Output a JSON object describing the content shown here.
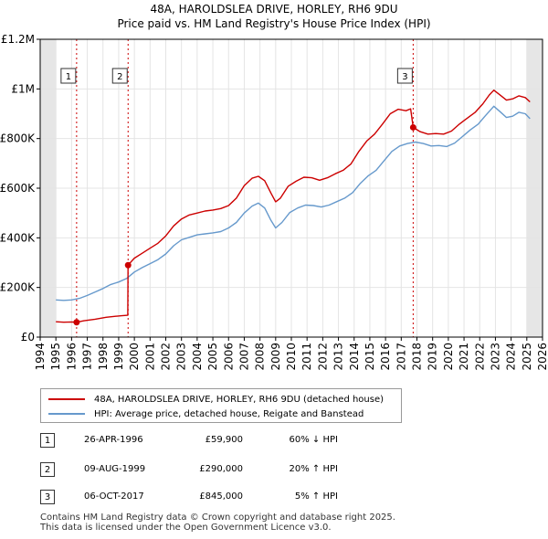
{
  "chart_data": {
    "type": "line",
    "title": "48A, HAROLDSLEA DRIVE, HORLEY, RH6 9DU",
    "subtitle": "Price paid vs. HM Land Registry's House Price Index (HPI)",
    "x_ticks": [
      "1994",
      "1995",
      "1996",
      "1997",
      "1998",
      "1999",
      "2000",
      "2001",
      "2002",
      "2003",
      "2004",
      "2005",
      "2006",
      "2007",
      "2008",
      "2009",
      "2010",
      "2011",
      "2012",
      "2013",
      "2014",
      "2015",
      "2016",
      "2017",
      "2018",
      "2019",
      "2020",
      "2021",
      "2022",
      "2023",
      "2024",
      "2025",
      "2026"
    ],
    "y_ticks": [
      {
        "value": 0,
        "label": "£0"
      },
      {
        "value": 200000,
        "label": "£200K"
      },
      {
        "value": 400000,
        "label": "£400K"
      },
      {
        "value": 600000,
        "label": "£600K"
      },
      {
        "value": 800000,
        "label": "£800K"
      },
      {
        "value": 1000000,
        "label": "£1M"
      },
      {
        "value": 1200000,
        "label": "£1.2M"
      }
    ],
    "xlim": [
      1994,
      2026
    ],
    "ylim": [
      0,
      1200000
    ],
    "series": [
      {
        "name": "48A, HAROLDSLEA DRIVE, HORLEY, RH6 9DU (detached house)",
        "color": "#cc0000",
        "points": [
          [
            1995.0,
            62000
          ],
          [
            1995.5,
            60000
          ],
          [
            1996.0,
            61000
          ],
          [
            1996.32,
            59900
          ],
          [
            1996.8,
            66000
          ],
          [
            1997.5,
            72000
          ],
          [
            1998.2,
            80000
          ],
          [
            1998.8,
            84000
          ],
          [
            1999.2,
            86000
          ],
          [
            1999.58,
            88000
          ],
          [
            1999.6,
            290000
          ],
          [
            2000.0,
            318000
          ],
          [
            2000.5,
            338000
          ],
          [
            2001.0,
            358000
          ],
          [
            2001.5,
            378000
          ],
          [
            2002.0,
            408000
          ],
          [
            2002.5,
            448000
          ],
          [
            2003.0,
            476000
          ],
          [
            2003.5,
            492000
          ],
          [
            2004.0,
            500000
          ],
          [
            2004.5,
            508000
          ],
          [
            2005.0,
            512000
          ],
          [
            2005.5,
            518000
          ],
          [
            2006.0,
            530000
          ],
          [
            2006.5,
            560000
          ],
          [
            2007.0,
            610000
          ],
          [
            2007.5,
            640000
          ],
          [
            2007.9,
            648000
          ],
          [
            2008.3,
            630000
          ],
          [
            2008.7,
            580000
          ],
          [
            2009.0,
            545000
          ],
          [
            2009.3,
            560000
          ],
          [
            2009.8,
            608000
          ],
          [
            2010.3,
            628000
          ],
          [
            2010.8,
            644000
          ],
          [
            2011.3,
            642000
          ],
          [
            2011.8,
            632000
          ],
          [
            2012.3,
            642000
          ],
          [
            2012.8,
            658000
          ],
          [
            2013.3,
            672000
          ],
          [
            2013.8,
            698000
          ],
          [
            2014.3,
            748000
          ],
          [
            2014.8,
            790000
          ],
          [
            2015.3,
            818000
          ],
          [
            2015.8,
            858000
          ],
          [
            2016.3,
            900000
          ],
          [
            2016.8,
            918000
          ],
          [
            2017.3,
            912000
          ],
          [
            2017.6,
            920000
          ],
          [
            2017.76,
            845000
          ],
          [
            2018.2,
            828000
          ],
          [
            2018.7,
            818000
          ],
          [
            2019.2,
            820000
          ],
          [
            2019.7,
            818000
          ],
          [
            2020.2,
            830000
          ],
          [
            2020.7,
            858000
          ],
          [
            2021.2,
            882000
          ],
          [
            2021.7,
            905000
          ],
          [
            2022.2,
            940000
          ],
          [
            2022.6,
            975000
          ],
          [
            2022.9,
            995000
          ],
          [
            2023.3,
            975000
          ],
          [
            2023.7,
            955000
          ],
          [
            2024.1,
            960000
          ],
          [
            2024.5,
            972000
          ],
          [
            2024.9,
            965000
          ],
          [
            2025.2,
            948000
          ]
        ]
      },
      {
        "name": "HPI: Average price, detached house, Reigate and Banstead",
        "color": "#6699cc",
        "points": [
          [
            1995.0,
            150000
          ],
          [
            1995.5,
            148000
          ],
          [
            1996.0,
            150000
          ],
          [
            1996.5,
            156000
          ],
          [
            1997.0,
            168000
          ],
          [
            1997.5,
            182000
          ],
          [
            1998.0,
            196000
          ],
          [
            1998.5,
            212000
          ],
          [
            1999.0,
            222000
          ],
          [
            1999.5,
            236000
          ],
          [
            2000.0,
            262000
          ],
          [
            2000.5,
            280000
          ],
          [
            2001.0,
            296000
          ],
          [
            2001.5,
            312000
          ],
          [
            2002.0,
            335000
          ],
          [
            2002.5,
            368000
          ],
          [
            2003.0,
            392000
          ],
          [
            2003.5,
            402000
          ],
          [
            2004.0,
            412000
          ],
          [
            2004.5,
            416000
          ],
          [
            2005.0,
            420000
          ],
          [
            2005.5,
            425000
          ],
          [
            2006.0,
            440000
          ],
          [
            2006.5,
            462000
          ],
          [
            2007.0,
            500000
          ],
          [
            2007.5,
            528000
          ],
          [
            2007.9,
            540000
          ],
          [
            2008.3,
            520000
          ],
          [
            2008.7,
            470000
          ],
          [
            2009.0,
            440000
          ],
          [
            2009.4,
            462000
          ],
          [
            2009.9,
            502000
          ],
          [
            2010.4,
            520000
          ],
          [
            2010.9,
            532000
          ],
          [
            2011.4,
            530000
          ],
          [
            2011.9,
            524000
          ],
          [
            2012.4,
            532000
          ],
          [
            2012.9,
            546000
          ],
          [
            2013.4,
            560000
          ],
          [
            2013.9,
            582000
          ],
          [
            2014.4,
            620000
          ],
          [
            2014.9,
            650000
          ],
          [
            2015.4,
            672000
          ],
          [
            2015.9,
            710000
          ],
          [
            2016.4,
            748000
          ],
          [
            2016.9,
            770000
          ],
          [
            2017.4,
            780000
          ],
          [
            2017.9,
            786000
          ],
          [
            2018.4,
            780000
          ],
          [
            2018.9,
            770000
          ],
          [
            2019.4,
            772000
          ],
          [
            2019.9,
            768000
          ],
          [
            2020.4,
            782000
          ],
          [
            2020.9,
            808000
          ],
          [
            2021.4,
            835000
          ],
          [
            2021.9,
            858000
          ],
          [
            2022.4,
            895000
          ],
          [
            2022.9,
            930000
          ],
          [
            2023.3,
            908000
          ],
          [
            2023.7,
            885000
          ],
          [
            2024.1,
            890000
          ],
          [
            2024.5,
            906000
          ],
          [
            2024.9,
            900000
          ],
          [
            2025.2,
            880000
          ]
        ]
      }
    ],
    "sales": [
      {
        "label": "1",
        "x": 1996.32,
        "price": 59900
      },
      {
        "label": "2",
        "x": 1999.6,
        "price": 290000
      },
      {
        "label": "3",
        "x": 2017.76,
        "price": 845000
      }
    ],
    "shaded_before": 1995.0,
    "shaded_after": 2025.0
  },
  "legend": {
    "items": [
      {
        "label": "48A, HAROLDSLEA DRIVE, HORLEY, RH6 9DU (detached house)",
        "color": "#cc0000"
      },
      {
        "label": "HPI: Average price, detached house, Reigate and Banstead",
        "color": "#6699cc"
      }
    ]
  },
  "sales_table": [
    {
      "num": "1",
      "date": "26-APR-1996",
      "price": "£59,900",
      "hpi": "60% ↓ HPI"
    },
    {
      "num": "2",
      "date": "09-AUG-1999",
      "price": "£290,000",
      "hpi": "20% ↑ HPI"
    },
    {
      "num": "3",
      "date": "06-OCT-2017",
      "price": "£845,000",
      "hpi": "5% ↑ HPI"
    }
  ],
  "footer": {
    "line1": "Contains HM Land Registry data © Crown copyright and database right 2025.",
    "line2": "This data is licensed under the Open Government Licence v3.0."
  }
}
